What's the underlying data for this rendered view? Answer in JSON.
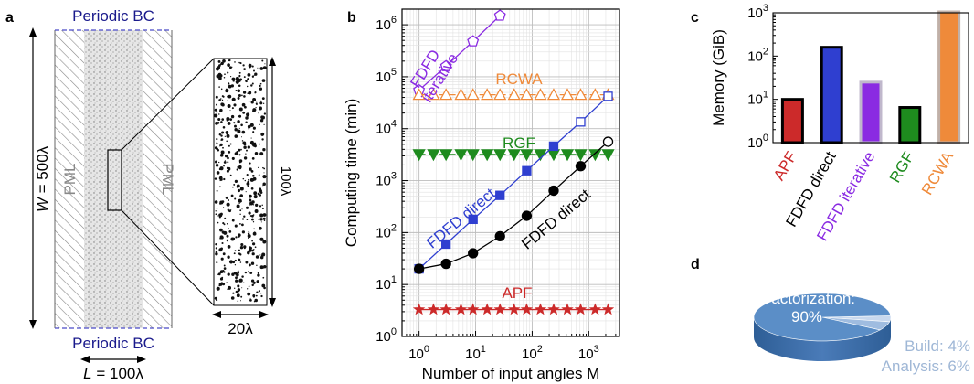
{
  "panel_a": {
    "letter": "a",
    "top_label": "Periodic BC",
    "bottom_label": "Periodic BC",
    "pml_left": "PML",
    "pml_right": "PML",
    "width_label_var": "W",
    "width_label_rest": " = 500λ",
    "length_label_var": "L",
    "length_label_rest": " = 100λ",
    "zoom_height_label": "100λ",
    "zoom_width_label": "20λ",
    "colors": {
      "boundary": "#1a1a8c",
      "pml": "#888888"
    }
  },
  "chart_data": [
    {
      "panel": "b",
      "type": "line",
      "xscale": "log",
      "yscale": "log",
      "xlabel": "Number of input angles M",
      "ylabel": "Computing time (min)",
      "xlim": [
        0.5,
        3500
      ],
      "ylim": [
        1,
        2000000
      ],
      "x_ticks": [
        "10^0",
        "10^1",
        "10^2",
        "10^3"
      ],
      "y_ticks": [
        "10^0",
        "10^1",
        "10^2",
        "10^3",
        "10^4",
        "10^5",
        "10^6"
      ],
      "grid": true,
      "series": [
        {
          "name": "FDFD iterative",
          "color": "#8a2be2",
          "marker": "pentagon-open",
          "x": [
            1,
            3,
            9,
            27
          ],
          "y": [
            55000,
            160000,
            480000,
            1500000
          ]
        },
        {
          "name": "RCWA",
          "color": "#ef8a3a",
          "marker": "triangle-open",
          "x": [
            1,
            1.8,
            3,
            5.5,
            9,
            16,
            27,
            48,
            80,
            140,
            240,
            420,
            720,
            1300,
            2200
          ],
          "y": [
            45000,
            45000,
            45000,
            45000,
            45000,
            45000,
            45000,
            45000,
            45000,
            45000,
            45000,
            45000,
            45000,
            45000,
            45000
          ]
        },
        {
          "name": "RGF",
          "color": "#1e8b1e",
          "marker": "triangle-down-filled",
          "x": [
            1,
            1.8,
            3,
            5.5,
            9,
            16,
            27,
            48,
            80,
            140,
            240,
            420,
            720,
            1300,
            2200
          ],
          "y": [
            3200,
            3200,
            3200,
            3200,
            3200,
            3200,
            3200,
            3200,
            3200,
            3200,
            3200,
            3200,
            3200,
            3200,
            3200
          ]
        },
        {
          "name": "FDFD direct",
          "color": "#2f3fd0",
          "marker": "square",
          "x": [
            1,
            3,
            9,
            27,
            80,
            240,
            720,
            2200
          ],
          "y": [
            20,
            60,
            180,
            520,
            1550,
            4600,
            13500,
            42000
          ],
          "open_from_index": 6
        },
        {
          "name": "FDFD direct",
          "color": "#000000",
          "marker": "circle",
          "x": [
            1,
            3,
            9,
            27,
            80,
            240,
            720,
            2200
          ],
          "y": [
            20,
            25,
            40,
            85,
            210,
            640,
            1900,
            5600
          ],
          "open_from_index": 7
        },
        {
          "name": "APF",
          "color": "#cc2a2a",
          "marker": "star",
          "x": [
            1,
            1.8,
            3,
            5.5,
            9,
            16,
            27,
            48,
            80,
            140,
            240,
            420,
            720,
            1300,
            2200
          ],
          "y": [
            3.3,
            3.3,
            3.3,
            3.3,
            3.3,
            3.3,
            3.3,
            3.3,
            3.3,
            3.3,
            3.3,
            3.3,
            3.3,
            3.3,
            3.3
          ]
        }
      ]
    },
    {
      "panel": "c",
      "type": "bar",
      "yscale": "log",
      "ylabel": "Memory (GiB)",
      "ylim": [
        1,
        1000
      ],
      "y_ticks": [
        "10^0",
        "10^1",
        "10^2",
        "10^3"
      ],
      "categories": [
        "APF",
        "FDFD direct",
        "FDFD iterative",
        "RGF",
        "RCWA"
      ],
      "values": [
        10,
        160,
        25,
        6.5,
        1050
      ],
      "colors": [
        "#cc2a2a",
        "#2f3fd0",
        "#8a2be2",
        "#1e8b1e",
        "#ef8a3a"
      ],
      "border_colors": [
        "#000000",
        "#000000",
        "#c0b8cc",
        "#000000",
        "#c0b0a8"
      ]
    },
    {
      "panel": "d",
      "type": "pie",
      "slices": [
        {
          "label": "Factorization:",
          "value_label": "90%",
          "value": 90,
          "color": "#5b8ec7"
        },
        {
          "label": "Build: 4%",
          "value": 4,
          "color": "#c8d8ee"
        },
        {
          "label": "Analysis: 6%",
          "value": 6,
          "color": "#9fbce0"
        }
      ]
    }
  ]
}
